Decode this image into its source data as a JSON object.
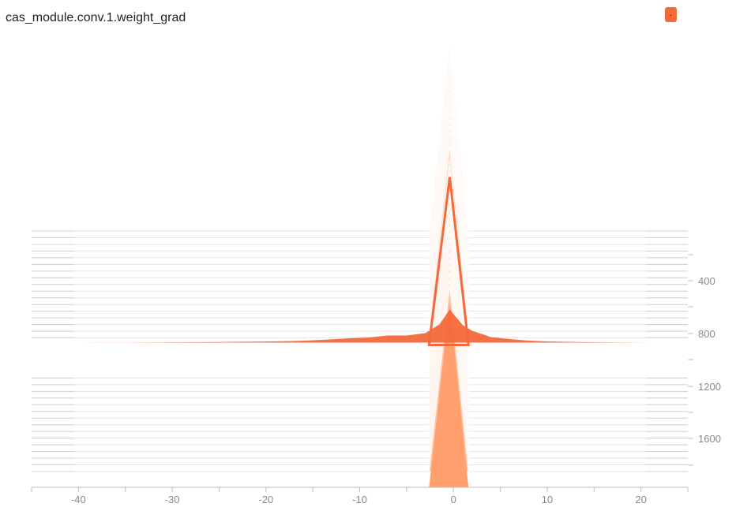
{
  "panel": {
    "title": "cas_module.conv.1.weight_grad",
    "badge": "."
  },
  "colors": {
    "newest_fill": "#ffa06e",
    "oldest_fill": "#f4693b",
    "highlight": "#f4693b",
    "axis": "#bdbdbd",
    "tick_text": "#8a8a8a"
  },
  "chart_data": {
    "type": "histogram-offset",
    "x_ticks": [
      -40,
      -30,
      -20,
      -10,
      0,
      10,
      20
    ],
    "xlim": [
      -45,
      25
    ],
    "y_ticks": [
      400,
      800,
      1200,
      1600
    ],
    "steplim": [
      0,
      1800
    ],
    "highlight_step": 800,
    "spike_steps": [
      0,
      50,
      100,
      150,
      200,
      250,
      300,
      350,
      400,
      450,
      500,
      550,
      600,
      650,
      700,
      750,
      800,
      850,
      900,
      950,
      1000,
      1050,
      1100,
      1150,
      1200,
      1250,
      1300,
      1350,
      1400,
      1450,
      1500,
      1550,
      1600,
      1650,
      1700,
      1750,
      1800
    ],
    "spike_x": [
      -2.6,
      -0.4,
      1.6
    ],
    "highlight_profile": {
      "x": [
        -44,
        -40,
        -35,
        -30,
        -25,
        -20,
        -17,
        -14,
        -11,
        -9,
        -7,
        -5,
        -3,
        -1.5,
        -0.4,
        1,
        2,
        4,
        6,
        8,
        10,
        12,
        15,
        18,
        21,
        25
      ],
      "y": [
        0,
        0.1,
        0.2,
        0.4,
        0.8,
        1.4,
        2,
        3.5,
        5.5,
        6.5,
        9,
        9,
        12,
        23,
        42,
        22,
        15,
        7,
        4.5,
        2.5,
        1.5,
        1,
        0.5,
        0.3,
        0.1,
        0
      ]
    }
  }
}
